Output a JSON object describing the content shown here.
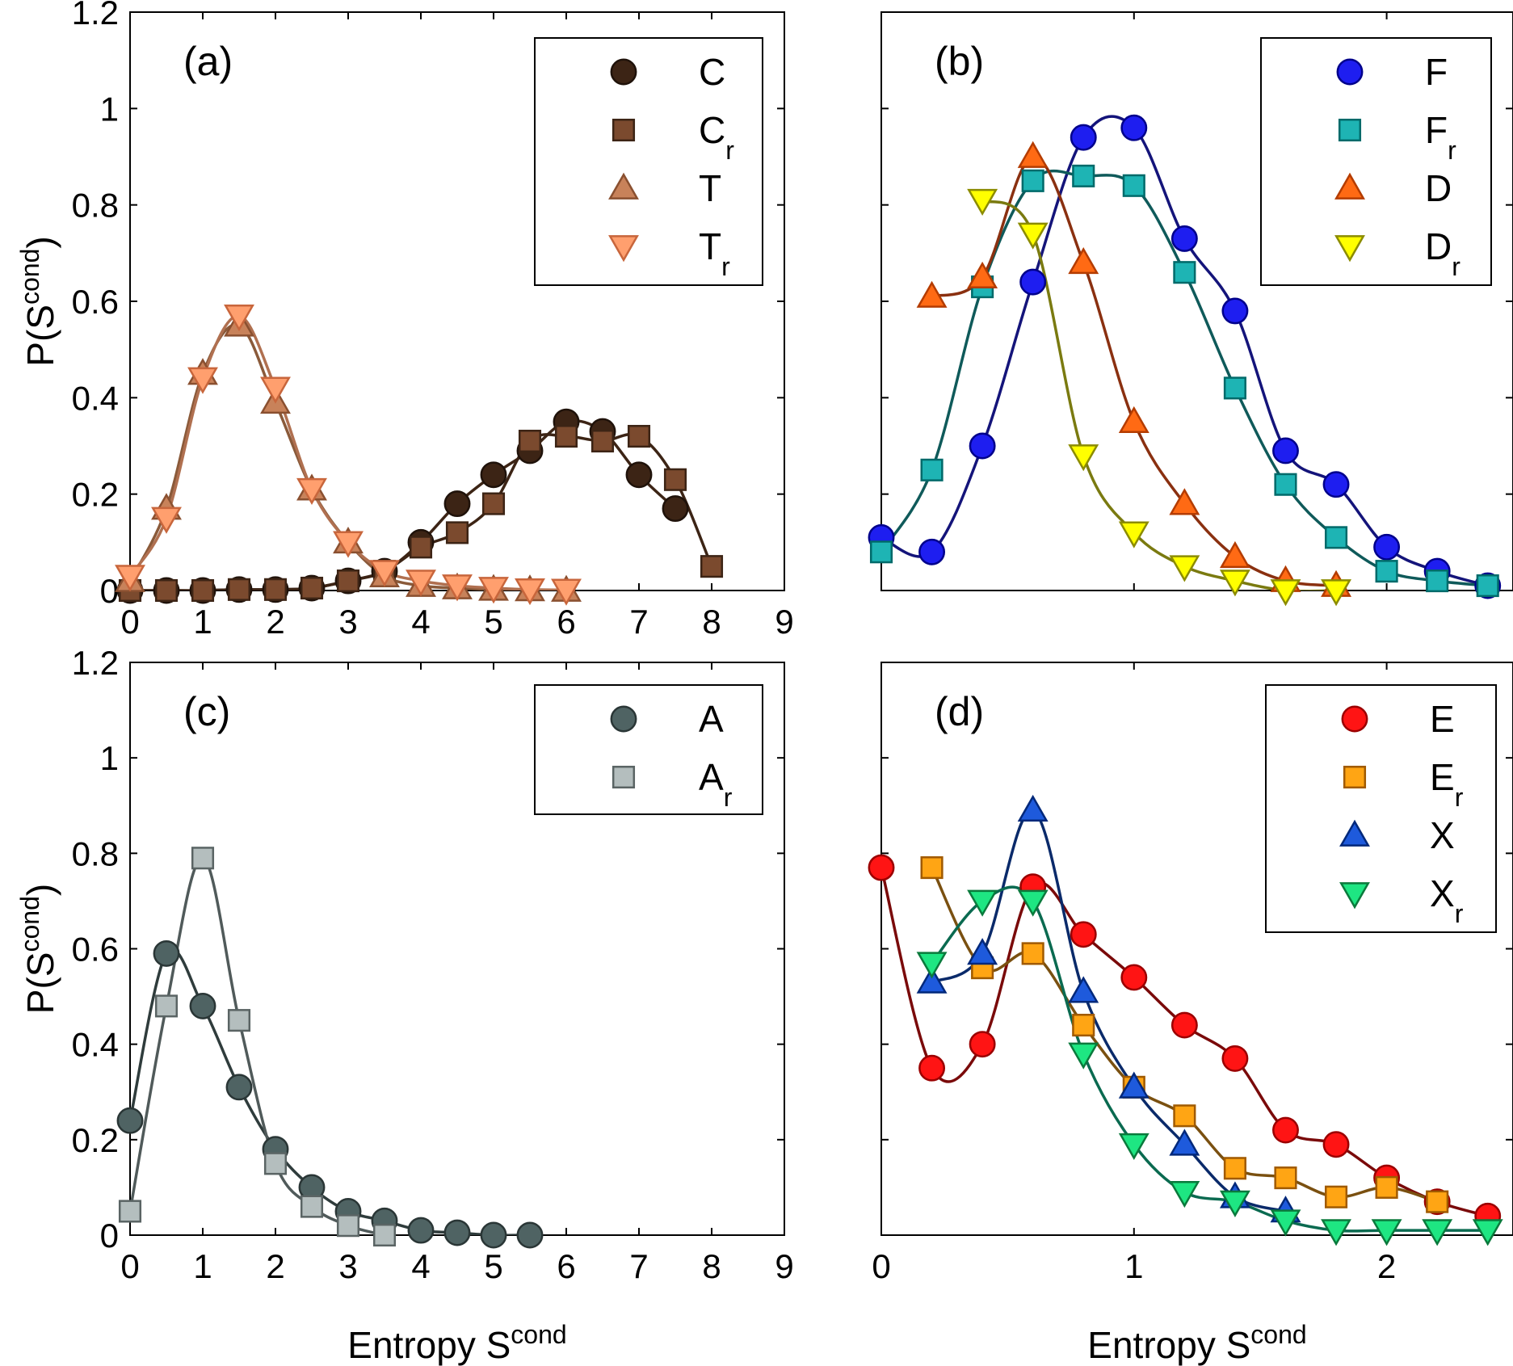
{
  "chart_data": [
    {
      "type": "line",
      "panel_label": "(a)",
      "xlabel": "",
      "ylabel": "P(S^cond)",
      "ylabel_main": "P(S",
      "ylabel_sup": "cond",
      "ylabel_close": ")",
      "xlim": [
        0,
        9
      ],
      "ylim": [
        0,
        1.2
      ],
      "xticks": [
        "0",
        "1",
        "2",
        "3",
        "4",
        "5",
        "6",
        "7",
        "8",
        "9"
      ],
      "yticks": [
        "0",
        "0.2",
        "0.4",
        "0.6",
        "0.8",
        "1",
        "1.2"
      ],
      "show_xtick_labels": true,
      "show_ytick_labels": true,
      "legend_position": "top-right",
      "series": [
        {
          "name": "C",
          "name_main": "C",
          "name_sub": "",
          "marker": "circle",
          "fill": "#3c2415",
          "edge": "#1f120a",
          "line": "#3c2415",
          "x": [
            0,
            0.5,
            1,
            1.5,
            2,
            2.5,
            3,
            3.5,
            4,
            4.5,
            5,
            5.5,
            6,
            6.5,
            7,
            7.5
          ],
          "y": [
            0.0,
            0.0,
            0.0,
            0.002,
            0.002,
            0.005,
            0.02,
            0.04,
            0.1,
            0.18,
            0.24,
            0.29,
            0.35,
            0.33,
            0.24,
            0.17
          ]
        },
        {
          "name": "Cr",
          "name_main": "C",
          "name_sub": "r",
          "marker": "square",
          "fill": "#7b4a2e",
          "edge": "#3c2415",
          "line": "#3c2415",
          "x": [
            0,
            0.5,
            1,
            1.5,
            2,
            2.5,
            3,
            3.5,
            4,
            4.5,
            5,
            5.5,
            6,
            6.5,
            7,
            7.5,
            8
          ],
          "y": [
            0.0,
            0.0,
            0.0,
            0.002,
            0.002,
            0.005,
            0.02,
            0.04,
            0.09,
            0.12,
            0.18,
            0.31,
            0.32,
            0.31,
            0.32,
            0.23,
            0.05
          ]
        },
        {
          "name": "T",
          "name_main": "T",
          "name_sub": "",
          "marker": "triangle-up",
          "fill": "#c8825a",
          "edge": "#8a5030",
          "line": "#8a5a3a",
          "x": [
            0,
            0.5,
            1,
            1.5,
            2,
            2.5,
            3,
            3.5,
            4,
            4.5,
            5,
            5.5,
            6
          ],
          "y": [
            0.02,
            0.17,
            0.45,
            0.55,
            0.39,
            0.21,
            0.1,
            0.03,
            0.01,
            0.005,
            0.002,
            0.001,
            0.0
          ]
        },
        {
          "name": "Tr",
          "name_main": "T",
          "name_sub": "r",
          "marker": "triangle-down",
          "fill": "#ff9f6e",
          "edge": "#c8663c",
          "line": "#b07050",
          "x": [
            0,
            0.5,
            1,
            1.5,
            2,
            2.5,
            3,
            3.5,
            4,
            4.5,
            5,
            5.5,
            6
          ],
          "y": [
            0.03,
            0.15,
            0.44,
            0.57,
            0.42,
            0.21,
            0.1,
            0.04,
            0.02,
            0.01,
            0.005,
            0.002,
            0.001
          ]
        }
      ]
    },
    {
      "type": "line",
      "panel_label": "(b)",
      "xlabel": "",
      "ylabel": "",
      "xlim": [
        0,
        2.5
      ],
      "ylim": [
        0,
        1.2
      ],
      "xticks": [
        "0",
        "1",
        "2"
      ],
      "yticks": [
        "0",
        "0.2",
        "0.4",
        "0.6",
        "0.8",
        "1",
        "1.2"
      ],
      "show_xtick_labels": false,
      "show_ytick_labels": false,
      "legend_position": "top-right",
      "series": [
        {
          "name": "F",
          "name_main": "F",
          "name_sub": "",
          "marker": "circle",
          "fill": "#1e1ef0",
          "edge": "#00008b",
          "line": "#14147a",
          "x": [
            0,
            0.2,
            0.4,
            0.6,
            0.8,
            1.0,
            1.2,
            1.4,
            1.6,
            1.8,
            2.0,
            2.2,
            2.4
          ],
          "y": [
            0.11,
            0.08,
            0.3,
            0.64,
            0.94,
            0.96,
            0.73,
            0.58,
            0.29,
            0.22,
            0.09,
            0.04,
            0.01
          ]
        },
        {
          "name": "Fr",
          "name_main": "F",
          "name_sub": "r",
          "marker": "square",
          "fill": "#1eb4b4",
          "edge": "#006a6a",
          "line": "#0f5a5a",
          "x": [
            0,
            0.2,
            0.4,
            0.6,
            0.8,
            1.0,
            1.2,
            1.4,
            1.6,
            1.8,
            2.0,
            2.2,
            2.4
          ],
          "y": [
            0.08,
            0.25,
            0.63,
            0.85,
            0.86,
            0.84,
            0.66,
            0.42,
            0.22,
            0.11,
            0.04,
            0.02,
            0.01
          ]
        },
        {
          "name": "D",
          "name_main": "D",
          "name_sub": "",
          "marker": "triangle-up",
          "fill": "#ff6a14",
          "edge": "#b43c00",
          "line": "#8a3010",
          "x": [
            0.2,
            0.4,
            0.6,
            0.8,
            1.0,
            1.2,
            1.4,
            1.6,
            1.8
          ],
          "y": [
            0.61,
            0.65,
            0.9,
            0.68,
            0.35,
            0.18,
            0.07,
            0.02,
            0.01
          ]
        },
        {
          "name": "Dr",
          "name_main": "D",
          "name_sub": "r",
          "marker": "triangle-down",
          "fill": "#ffff00",
          "edge": "#8c8c00",
          "line": "#7a7a10",
          "x": [
            0.4,
            0.6,
            0.8,
            1.0,
            1.2,
            1.4,
            1.6,
            1.8
          ],
          "y": [
            0.81,
            0.74,
            0.28,
            0.12,
            0.05,
            0.02,
            0.0,
            0.0
          ]
        }
      ]
    },
    {
      "type": "line",
      "panel_label": "(c)",
      "xlabel": "Entropy S^cond",
      "xlabel_main": "Entropy S",
      "xlabel_sup": "cond",
      "ylabel": "P(S^cond)",
      "ylabel_main": "P(S",
      "ylabel_sup": "cond",
      "ylabel_close": ")",
      "xlim": [
        0,
        9
      ],
      "ylim": [
        0,
        1.2
      ],
      "xticks": [
        "0",
        "1",
        "2",
        "3",
        "4",
        "5",
        "6",
        "7",
        "8",
        "9"
      ],
      "yticks": [
        "0",
        "0.2",
        "0.4",
        "0.6",
        "0.8",
        "1",
        "1.2"
      ],
      "show_xtick_labels": true,
      "show_ytick_labels": true,
      "legend_position": "top-right",
      "series": [
        {
          "name": "A",
          "name_main": "A",
          "name_sub": "",
          "marker": "circle",
          "fill": "#4f6363",
          "edge": "#2a3636",
          "line": "#2f3c3c",
          "x": [
            0,
            0.5,
            1,
            1.5,
            2,
            2.5,
            3,
            3.5,
            4,
            4.5,
            5,
            5.5
          ],
          "y": [
            0.24,
            0.59,
            0.48,
            0.31,
            0.18,
            0.1,
            0.05,
            0.03,
            0.01,
            0.005,
            0.0,
            0.0
          ]
        },
        {
          "name": "Ar",
          "name_main": "A",
          "name_sub": "r",
          "marker": "square",
          "fill": "#b4bebe",
          "edge": "#5a6464",
          "line": "#505a5a",
          "x": [
            0,
            0.5,
            1,
            1.5,
            2,
            2.5,
            3,
            3.5
          ],
          "y": [
            0.05,
            0.48,
            0.79,
            0.45,
            0.15,
            0.06,
            0.02,
            0.0
          ]
        }
      ]
    },
    {
      "type": "line",
      "panel_label": "(d)",
      "xlabel": "Entropy S^cond",
      "xlabel_main": "Entropy S",
      "xlabel_sup": "cond",
      "ylabel": "",
      "xlim": [
        0,
        2.5
      ],
      "ylim": [
        0,
        1.2
      ],
      "xticks": [
        "0",
        "1",
        "2"
      ],
      "yticks": [
        "0",
        "0.2",
        "0.4",
        "0.6",
        "0.8",
        "1",
        "1.2"
      ],
      "show_xtick_labels": true,
      "show_ytick_labels": false,
      "legend_position": "top-right",
      "series": [
        {
          "name": "E",
          "name_main": "E",
          "name_sub": "",
          "marker": "circle",
          "fill": "#ff1414",
          "edge": "#9b0000",
          "line": "#7a0a0a",
          "x": [
            0,
            0.2,
            0.4,
            0.6,
            0.8,
            1.0,
            1.2,
            1.4,
            1.6,
            1.8,
            2.0,
            2.2,
            2.4
          ],
          "y": [
            0.77,
            0.35,
            0.4,
            0.73,
            0.63,
            0.54,
            0.44,
            0.37,
            0.22,
            0.19,
            0.12,
            0.07,
            0.04
          ]
        },
        {
          "name": "Er",
          "name_main": "E",
          "name_sub": "r",
          "marker": "square",
          "fill": "#ffa514",
          "edge": "#a05a00",
          "line": "#7a5010",
          "x": [
            0.2,
            0.4,
            0.6,
            0.8,
            1.0,
            1.2,
            1.4,
            1.6,
            1.8,
            2.0,
            2.2
          ],
          "y": [
            0.77,
            0.56,
            0.59,
            0.44,
            0.31,
            0.25,
            0.14,
            0.12,
            0.08,
            0.1,
            0.07
          ]
        },
        {
          "name": "X",
          "name_main": "X",
          "name_sub": "",
          "marker": "triangle-up",
          "fill": "#1e5adc",
          "edge": "#00287a",
          "line": "#0a2a6a",
          "x": [
            0.2,
            0.4,
            0.6,
            0.8,
            1.0,
            1.2,
            1.4,
            1.6
          ],
          "y": [
            0.53,
            0.59,
            0.89,
            0.51,
            0.31,
            0.19,
            0.08,
            0.05
          ]
        },
        {
          "name": "Xr",
          "name_main": "X",
          "name_sub": "r",
          "marker": "triangle-down",
          "fill": "#1ee682",
          "edge": "#0a7a3c",
          "line": "#0a6a50",
          "x": [
            0.2,
            0.4,
            0.6,
            0.8,
            1.0,
            1.2,
            1.4,
            1.6,
            1.8,
            2.0,
            2.2,
            2.4
          ],
          "y": [
            0.57,
            0.7,
            0.7,
            0.38,
            0.19,
            0.09,
            0.07,
            0.03,
            0.01,
            0.01,
            0.01,
            0.01
          ]
        }
      ]
    }
  ]
}
